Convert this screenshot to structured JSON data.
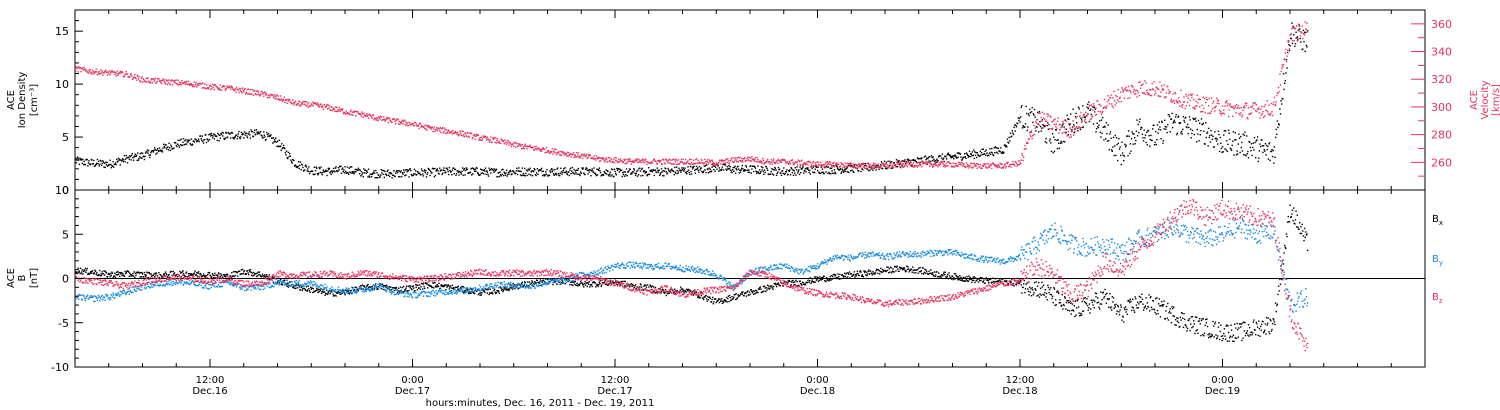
{
  "colors": {
    "black": "#000000",
    "pink": "#e8325e",
    "blue": "#1a8ce0"
  },
  "xaxis": {
    "title": "hours:minutes, Dec. 16, 2011 - Dec. 19, 2011",
    "ticks": [
      {
        "time": "12:00",
        "date": "Dec.16"
      },
      {
        "time": "0:00",
        "date": "Dec.17"
      },
      {
        "time": "12:00",
        "date": "Dec.17"
      },
      {
        "time": "0:00",
        "date": "Dec.18"
      },
      {
        "time": "12:00",
        "date": "Dec.18"
      },
      {
        "time": "0:00",
        "date": "Dec.19"
      }
    ]
  },
  "chart_data": [
    {
      "type": "scatter",
      "panel": "top",
      "ylabel_left": [
        "ACE",
        "Ion Density",
        "[cm⁻³]"
      ],
      "ylabel_right": [
        "ACE",
        "Velocity",
        "[km/s]"
      ],
      "x_range_hours": [
        0,
        80
      ],
      "ylim_left": [
        0,
        17
      ],
      "ylim_right": [
        240,
        370
      ],
      "yticks_left": [
        "0",
        "5",
        "10",
        "15"
      ],
      "yticks_right": [
        "260",
        "280",
        "300",
        "320",
        "340",
        "360"
      ],
      "series": [
        {
          "name": "",
          "axis": "left",
          "color": "black",
          "x_hours": [
            0,
            1,
            2,
            3,
            4,
            5,
            6,
            7,
            8,
            9,
            10,
            11,
            12,
            13,
            14,
            15,
            16,
            17,
            18,
            19,
            20,
            21,
            22,
            23,
            24,
            25,
            26,
            27,
            28,
            29,
            30,
            31,
            32,
            33,
            34,
            35,
            36,
            37,
            38,
            39,
            40,
            41,
            42,
            43,
            44,
            45,
            46,
            47,
            48,
            49,
            50,
            51,
            52,
            53,
            54,
            55,
            56,
            57,
            58,
            59,
            60,
            61,
            62,
            63,
            64,
            65,
            66,
            67,
            68,
            69,
            70,
            71,
            72,
            73
          ],
          "values": [
            2.8,
            2.6,
            2.5,
            3.0,
            3.3,
            3.9,
            4.4,
            4.7,
            5.0,
            5.2,
            5.3,
            5.4,
            4.5,
            2.6,
            1.9,
            1.8,
            2.0,
            1.7,
            1.6,
            1.6,
            1.7,
            1.7,
            1.8,
            1.8,
            1.8,
            1.7,
            1.8,
            1.8,
            1.8,
            1.8,
            1.8,
            1.8,
            1.7,
            1.7,
            1.8,
            1.8,
            1.9,
            2.0,
            2.2,
            2.0,
            2.0,
            1.9,
            1.8,
            1.9,
            2.0,
            2.0,
            2.1,
            2.2,
            2.4,
            2.6,
            2.8,
            3.0,
            3.2,
            3.4,
            3.6,
            3.9,
            7.0,
            6.5,
            4.5,
            6.5,
            7.4,
            5.5,
            3.5,
            6.0,
            5.0,
            6.5,
            6.0,
            5.5,
            4.5,
            4.5,
            4.0,
            3.5,
            15.0,
            14.0
          ]
        },
        {
          "name": "",
          "axis": "right",
          "color": "pink",
          "x_hours": [
            0,
            1,
            2,
            3,
            4,
            5,
            6,
            7,
            8,
            9,
            10,
            11,
            12,
            13,
            14,
            15,
            16,
            17,
            18,
            19,
            20,
            21,
            22,
            23,
            24,
            25,
            26,
            27,
            28,
            29,
            30,
            31,
            32,
            33,
            34,
            35,
            36,
            37,
            38,
            39,
            40,
            41,
            42,
            43,
            44,
            45,
            46,
            47,
            48,
            49,
            50,
            51,
            52,
            53,
            54,
            55,
            56,
            57,
            58,
            59,
            60,
            61,
            62,
            63,
            64,
            65,
            66,
            67,
            68,
            69,
            70,
            71,
            72,
            73
          ],
          "values": [
            328,
            326,
            325,
            324,
            320,
            319,
            318,
            317,
            315,
            314,
            312,
            310,
            307,
            303,
            302,
            300,
            297,
            295,
            292,
            290,
            288,
            285,
            283,
            281,
            278,
            276,
            273,
            271,
            269,
            267,
            265,
            263,
            262,
            261,
            261,
            261,
            261,
            261,
            260,
            262,
            263,
            261,
            261,
            260,
            259,
            259,
            258,
            258,
            258,
            259,
            259,
            259,
            259,
            258,
            258,
            258,
            260,
            292,
            288,
            284,
            296,
            302,
            310,
            314,
            314,
            309,
            304,
            302,
            300,
            298,
            298,
            300,
            352,
            357
          ]
        }
      ]
    },
    {
      "type": "scatter",
      "panel": "bottom",
      "ylabel_left": [
        "ACE",
        "B",
        "[nT]"
      ],
      "x_range_hours": [
        0,
        80
      ],
      "ylim": [
        -10,
        10
      ],
      "yticks": [
        "-10",
        "-5",
        "0",
        "5",
        "10"
      ],
      "series": [
        {
          "name": "Bx",
          "color": "black",
          "x_hours": [
            0,
            1,
            2,
            3,
            4,
            5,
            6,
            7,
            8,
            9,
            10,
            11,
            12,
            13,
            14,
            15,
            16,
            17,
            18,
            19,
            20,
            21,
            22,
            23,
            24,
            25,
            26,
            27,
            28,
            29,
            30,
            31,
            32,
            33,
            34,
            35,
            36,
            37,
            38,
            39,
            40,
            41,
            42,
            43,
            44,
            45,
            46,
            47,
            48,
            49,
            50,
            51,
            52,
            53,
            54,
            55,
            56,
            57,
            58,
            59,
            60,
            61,
            62,
            63,
            64,
            65,
            66,
            67,
            68,
            69,
            70,
            71,
            72,
            73
          ],
          "values": [
            1.0,
            0.8,
            0.5,
            0.6,
            0.5,
            0.4,
            0.6,
            0.6,
            0.5,
            0.3,
            0.9,
            0.5,
            -0.2,
            -0.8,
            -1.2,
            -1.6,
            -1.5,
            -1.0,
            -0.8,
            -1.2,
            -1.0,
            -0.6,
            -0.9,
            -1.2,
            -1.5,
            -1.3,
            -0.8,
            -0.5,
            -0.3,
            -0.2,
            -0.6,
            -0.5,
            -0.3,
            -0.8,
            -1.0,
            -1.5,
            -1.2,
            -1.8,
            -2.6,
            -2.0,
            -1.5,
            -1.0,
            -0.5,
            -0.4,
            0.0,
            0.2,
            0.5,
            0.7,
            1.0,
            1.2,
            1.0,
            0.6,
            0.3,
            0.0,
            -0.2,
            -0.3,
            -0.5,
            -1.0,
            -2.0,
            -3.5,
            -3.0,
            -2.0,
            -4.0,
            -2.5,
            -3.0,
            -4.0,
            -5.0,
            -5.5,
            -6.0,
            -6.0,
            -5.5,
            -5.0,
            8.0,
            4.0
          ]
        },
        {
          "name": "By",
          "color": "blue",
          "x_hours": [
            0,
            1,
            2,
            3,
            4,
            5,
            6,
            7,
            8,
            9,
            10,
            11,
            12,
            13,
            14,
            15,
            16,
            17,
            18,
            19,
            20,
            21,
            22,
            23,
            24,
            25,
            26,
            27,
            28,
            29,
            30,
            31,
            32,
            33,
            34,
            35,
            36,
            37,
            38,
            39,
            40,
            41,
            42,
            43,
            44,
            45,
            46,
            47,
            48,
            49,
            50,
            51,
            52,
            53,
            54,
            55,
            56,
            57,
            58,
            59,
            60,
            61,
            62,
            63,
            64,
            65,
            66,
            67,
            68,
            69,
            70,
            71,
            72,
            73
          ],
          "values": [
            -2.0,
            -2.2,
            -2.0,
            -1.5,
            -0.8,
            -0.5,
            -0.3,
            -0.5,
            -0.8,
            -0.4,
            -1.0,
            -0.9,
            -0.4,
            -0.5,
            -0.5,
            -1.0,
            -1.3,
            -1.2,
            -0.8,
            -1.5,
            -1.8,
            -1.6,
            -1.4,
            -1.3,
            -1.0,
            -0.6,
            -0.7,
            -0.8,
            -0.3,
            -0.2,
            0.5,
            0.8,
            1.5,
            1.6,
            1.4,
            1.5,
            1.2,
            1.0,
            0.5,
            -1.0,
            0.8,
            1.2,
            1.5,
            0.8,
            1.5,
            2.5,
            2.4,
            2.8,
            2.5,
            2.8,
            2.8,
            3.0,
            3.0,
            2.5,
            2.2,
            2.0,
            2.5,
            4.0,
            5.5,
            4.0,
            3.5,
            4.0,
            3.0,
            4.5,
            5.0,
            6.0,
            5.0,
            4.5,
            5.0,
            6.0,
            5.0,
            5.5,
            -3.0,
            -2.0
          ]
        },
        {
          "name": "Bz",
          "color": "pink",
          "x_hours": [
            0,
            1,
            2,
            3,
            4,
            5,
            6,
            7,
            8,
            9,
            10,
            11,
            12,
            13,
            14,
            15,
            16,
            17,
            18,
            19,
            20,
            21,
            22,
            23,
            24,
            25,
            26,
            27,
            28,
            29,
            30,
            31,
            32,
            33,
            34,
            35,
            36,
            37,
            38,
            39,
            40,
            41,
            42,
            43,
            44,
            45,
            46,
            47,
            48,
            49,
            50,
            51,
            52,
            53,
            54,
            55,
            56,
            57,
            58,
            59,
            60,
            61,
            62,
            63,
            64,
            65,
            66,
            67,
            68,
            69,
            70,
            71,
            72,
            73
          ],
          "values": [
            0.0,
            -0.2,
            -0.5,
            -0.8,
            -0.3,
            0.0,
            0.2,
            0.0,
            -0.2,
            0.0,
            -0.5,
            -0.5,
            0.6,
            0.4,
            0.5,
            0.6,
            0.3,
            0.7,
            0.5,
            0.2,
            0.0,
            0.0,
            0.3,
            0.5,
            0.8,
            0.6,
            0.7,
            0.6,
            0.8,
            0.5,
            0.2,
            0.0,
            -0.5,
            -1.0,
            -1.5,
            -1.0,
            -1.8,
            -1.4,
            -1.2,
            -1.0,
            0.8,
            0.5,
            -0.5,
            -1.2,
            -1.6,
            -1.8,
            -2.0,
            -2.5,
            -2.8,
            -2.6,
            -2.5,
            -2.2,
            -2.0,
            -1.5,
            -1.0,
            -0.5,
            -0.2,
            1.5,
            0.5,
            -2.0,
            -1.0,
            2.0,
            1.0,
            3.5,
            5.0,
            7.0,
            8.5,
            7.0,
            8.0,
            7.5,
            7.0,
            6.5,
            -4.0,
            -8.0
          ]
        }
      ]
    }
  ]
}
